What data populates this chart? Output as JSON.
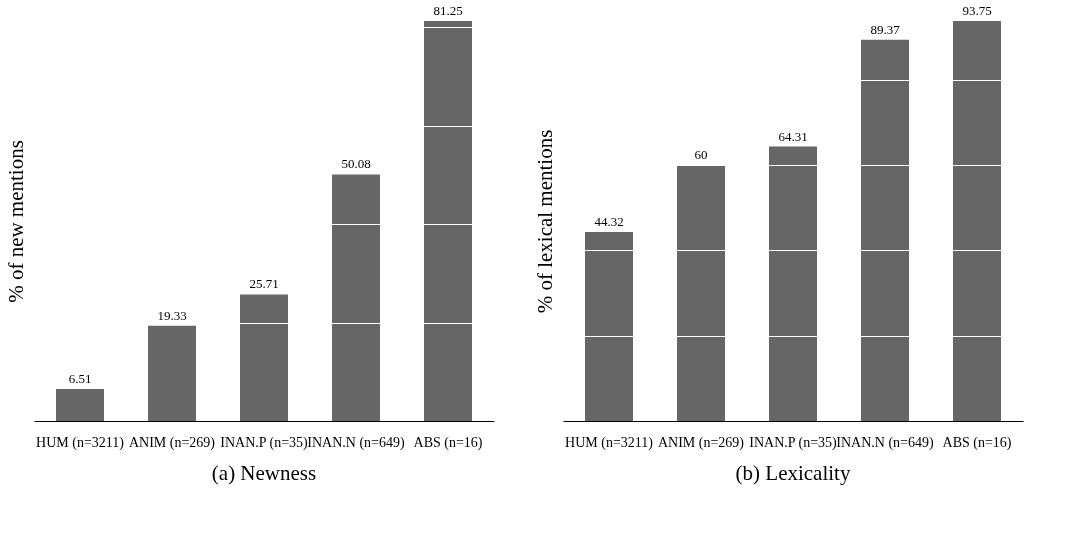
{
  "chart_data": [
    {
      "type": "bar",
      "title": "(a) Newness",
      "ylabel": "% of new mentions",
      "categories": [
        "HUM (n=3211)",
        "ANIM (n=269)",
        "INAN.P (n=35)",
        "INAN.N (n=649)",
        "ABS (n=16)"
      ],
      "values": [
        6.51,
        19.33,
        25.71,
        50.08,
        81.25
      ],
      "color": "#666666",
      "yticks": [
        {
          "value": 20,
          "label": null
        },
        {
          "value": 40,
          "label": null
        },
        {
          "value": 60,
          "label": null
        },
        {
          "value": 80,
          "label": null
        }
      ],
      "grid": "y",
      "tick_labels": "x",
      "data_labels": true
    },
    {
      "type": "bar",
      "title": "(b) Lexicality",
      "ylabel": "% of lexical mentions",
      "categories": [
        "HUM (n=3211)",
        "ANIM (n=269)",
        "INAN.P (n=35)",
        "INAN.N (n=649)",
        "ABS (n=16)"
      ],
      "values": [
        44.32,
        60,
        64.31,
        89.37,
        93.75
      ],
      "color": "#666666",
      "yticks": [
        {
          "value": 20,
          "label": null
        },
        {
          "value": 40,
          "label": null
        },
        {
          "value": 60,
          "label": null
        },
        {
          "value": 80,
          "label": null
        }
      ],
      "grid": "y",
      "tick_labels": "x",
      "data_labels": true
    }
  ]
}
